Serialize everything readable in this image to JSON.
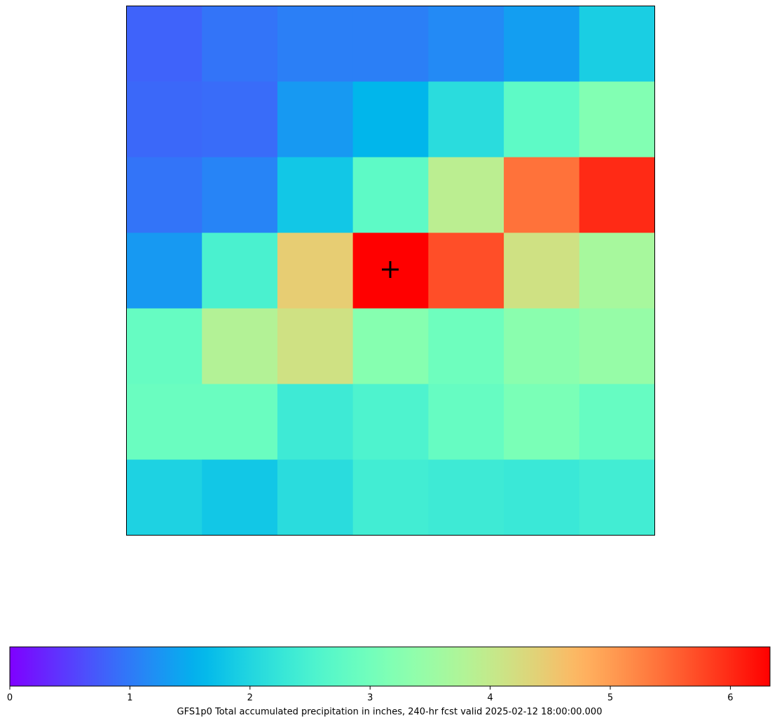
{
  "chart_data": {
    "type": "heatmap",
    "colormap": "rainbow",
    "z": [
      [
        0.8,
        0.95,
        1.05,
        1.05,
        1.15,
        1.35,
        1.9
      ],
      [
        0.85,
        0.88,
        1.3,
        1.6,
        2.1,
        2.75,
        3.2
      ],
      [
        0.95,
        1.1,
        1.8,
        2.75,
        3.9,
        5.4,
        6.0
      ],
      [
        1.3,
        2.5,
        4.45,
        6.33,
        5.7,
        4.15,
        3.65
      ],
      [
        2.85,
        3.8,
        4.15,
        3.25,
        2.95,
        3.3,
        3.45
      ],
      [
        2.9,
        2.9,
        2.35,
        2.55,
        2.85,
        3.1,
        2.85
      ],
      [
        1.95,
        1.8,
        2.1,
        2.4,
        2.35,
        2.3,
        2.4
      ]
    ],
    "clim": [
      0,
      6.33
    ],
    "cticks": [
      0,
      1,
      2,
      3,
      4,
      5,
      6
    ],
    "colorbar_label": "GFS1p0 Total accumulated precipitation in inches, 240-hr fcst valid 2025-02-12 18:00:00.000"
  }
}
